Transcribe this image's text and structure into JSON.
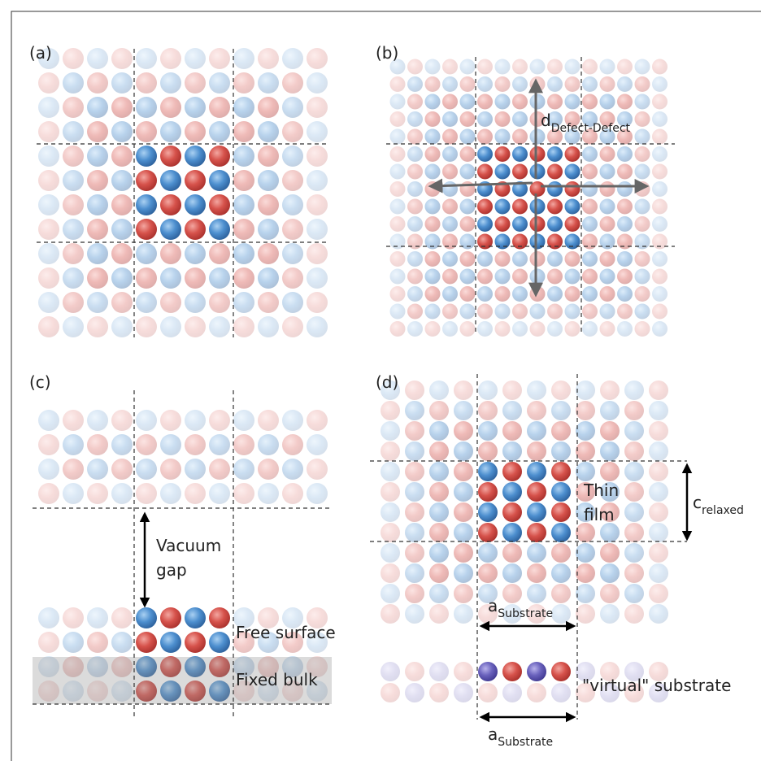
{
  "panels": [
    {
      "label": "(a)"
    },
    {
      "label": "(b)",
      "distance": {
        "symbol": "d",
        "subscript": "Defect-Defect"
      }
    },
    {
      "label": "(c)",
      "vacuum": [
        "Vacuum",
        "gap"
      ],
      "surface": "Free surface",
      "bulk": "Fixed bulk"
    },
    {
      "label": "(d)",
      "film": [
        "Thin",
        "film"
      ],
      "relaxed": {
        "symbol": "c",
        "subscript": "relaxed"
      },
      "lattice": [
        {
          "symbol": "a",
          "subscript": "Substrate"
        },
        {
          "symbol": "a",
          "subscript": "Substrate"
        }
      ],
      "substrate": "\"virtual\" substrate"
    }
  ]
}
